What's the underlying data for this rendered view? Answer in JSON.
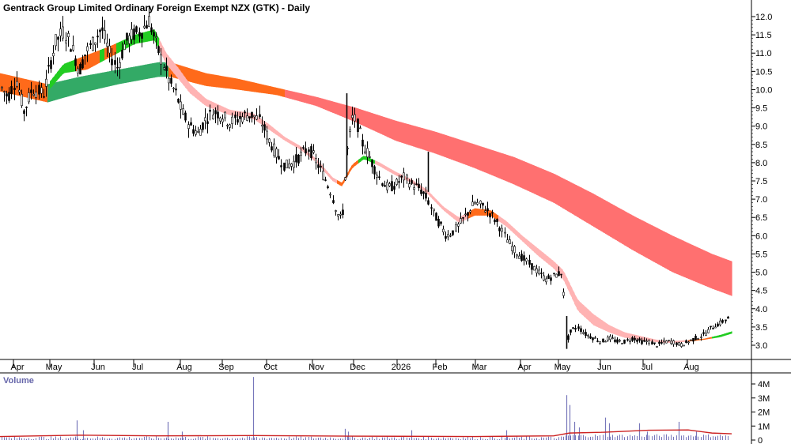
{
  "chart_data": {
    "type": "candlestick",
    "title": "Gentrack Group Limited Ordinary Foreign Exempt NZX (GTK) - Daily",
    "price_axis": {
      "ylim": [
        2.6,
        12.25
      ],
      "ticks": [
        3.0,
        3.5,
        4.0,
        4.5,
        5.0,
        5.5,
        6.0,
        6.5,
        7.0,
        7.5,
        8.0,
        8.5,
        9.0,
        9.5,
        10.0,
        10.5,
        11.0,
        11.5,
        12.0
      ],
      "tick_labels": [
        "3.0",
        "3.5",
        "4.0",
        "4.5",
        "5.0",
        "5.5",
        "6.0",
        "6.5",
        "7.0",
        "7.5",
        "8.0",
        "8.5",
        "9.0",
        "9.5",
        "10.0",
        "10.5",
        "11.0",
        "11.5",
        "12.0"
      ]
    },
    "x_axis": {
      "labels": [
        "Apr",
        "May",
        "Jun",
        "Jul",
        "Aug",
        "Sep",
        "Oct",
        "Nov",
        "Dec",
        "2026",
        "Feb",
        "Mar",
        "Apr",
        "May",
        "Jun",
        "Jul",
        "Aug"
      ],
      "grid": false
    },
    "price_path": [
      [
        0,
        10.1
      ],
      [
        10,
        9.8
      ],
      [
        20,
        10.3
      ],
      [
        30,
        9.4
      ],
      [
        40,
        10.0
      ],
      [
        55,
        9.9
      ],
      [
        62,
        10.6
      ],
      [
        70,
        11.3
      ],
      [
        80,
        11.6
      ],
      [
        90,
        11.2
      ],
      [
        100,
        10.5
      ],
      [
        108,
        11.0
      ],
      [
        118,
        11.3
      ],
      [
        128,
        11.7
      ],
      [
        138,
        11.0
      ],
      [
        148,
        10.6
      ],
      [
        158,
        11.3
      ],
      [
        168,
        11.5
      ],
      [
        178,
        11.6
      ],
      [
        188,
        11.9
      ],
      [
        198,
        11.2
      ],
      [
        206,
        10.7
      ],
      [
        214,
        10.2
      ],
      [
        222,
        9.9
      ],
      [
        230,
        9.4
      ],
      [
        240,
        9.0
      ],
      [
        250,
        8.8
      ],
      [
        260,
        9.2
      ],
      [
        270,
        9.4
      ],
      [
        280,
        9.3
      ],
      [
        290,
        9.1
      ],
      [
        300,
        9.2
      ],
      [
        310,
        9.3
      ],
      [
        320,
        9.3
      ],
      [
        330,
        9.1
      ],
      [
        340,
        8.6
      ],
      [
        350,
        8.2
      ],
      [
        360,
        7.9
      ],
      [
        370,
        8.0
      ],
      [
        380,
        8.2
      ],
      [
        390,
        8.4
      ],
      [
        400,
        8.0
      ],
      [
        410,
        7.6
      ],
      [
        418,
        7.2
      ],
      [
        426,
        6.6
      ],
      [
        432,
        6.4
      ],
      [
        438,
        8.2
      ],
      [
        446,
        9.3
      ],
      [
        452,
        9.0
      ],
      [
        458,
        8.5
      ],
      [
        466,
        8.2
      ],
      [
        474,
        7.8
      ],
      [
        482,
        7.5
      ],
      [
        490,
        7.3
      ],
      [
        500,
        7.4
      ],
      [
        510,
        7.6
      ],
      [
        520,
        7.4
      ],
      [
        530,
        7.3
      ],
      [
        540,
        7.0
      ],
      [
        548,
        6.6
      ],
      [
        556,
        6.3
      ],
      [
        564,
        6.0
      ],
      [
        572,
        6.1
      ],
      [
        580,
        6.3
      ],
      [
        590,
        6.6
      ],
      [
        600,
        6.9
      ],
      [
        610,
        6.8
      ],
      [
        620,
        6.6
      ],
      [
        630,
        6.3
      ],
      [
        640,
        5.9
      ],
      [
        650,
        5.6
      ],
      [
        660,
        5.4
      ],
      [
        670,
        5.2
      ],
      [
        680,
        5.0
      ],
      [
        690,
        4.8
      ],
      [
        700,
        4.9
      ],
      [
        710,
        5.0
      ],
      [
        716,
        3.1
      ],
      [
        722,
        3.4
      ],
      [
        730,
        3.5
      ],
      [
        740,
        3.3
      ],
      [
        750,
        3.2
      ],
      [
        760,
        3.1
      ],
      [
        770,
        3.2
      ],
      [
        780,
        3.1
      ],
      [
        790,
        3.1
      ],
      [
        800,
        3.2
      ],
      [
        810,
        3.1
      ],
      [
        820,
        3.1
      ],
      [
        830,
        3.0
      ],
      [
        840,
        3.1
      ],
      [
        850,
        3.1
      ],
      [
        860,
        3.0
      ],
      [
        870,
        3.1
      ],
      [
        880,
        3.2
      ],
      [
        890,
        3.3
      ],
      [
        900,
        3.5
      ],
      [
        910,
        3.6
      ],
      [
        920,
        3.75
      ]
    ],
    "short_ma_band": [
      [
        0,
        10.35,
        9.8
      ],
      [
        40,
        10.05,
        9.75
      ],
      [
        62,
        10.2,
        10.0
      ],
      [
        80,
        10.7,
        10.45
      ],
      [
        110,
        10.95,
        10.55
      ],
      [
        140,
        11.2,
        10.9
      ],
      [
        170,
        11.5,
        11.25
      ],
      [
        195,
        11.65,
        11.35
      ],
      [
        210,
        11.0,
        10.7
      ],
      [
        225,
        10.6,
        10.3
      ],
      [
        240,
        10.15,
        9.9
      ],
      [
        260,
        9.75,
        9.55
      ],
      [
        290,
        9.45,
        9.3
      ],
      [
        320,
        9.35,
        9.2
      ],
      [
        340,
        9.05,
        8.9
      ],
      [
        360,
        8.7,
        8.6
      ],
      [
        380,
        8.45,
        8.35
      ],
      [
        400,
        8.1,
        8.0
      ],
      [
        420,
        7.6,
        7.5
      ],
      [
        432,
        7.45,
        7.35
      ],
      [
        445,
        7.95,
        7.85
      ],
      [
        460,
        8.2,
        8.1
      ],
      [
        480,
        8.0,
        7.9
      ],
      [
        500,
        7.75,
        7.65
      ],
      [
        520,
        7.55,
        7.45
      ],
      [
        540,
        7.25,
        7.15
      ],
      [
        560,
        6.8,
        6.7
      ],
      [
        580,
        6.5,
        6.35
      ],
      [
        600,
        6.75,
        6.55
      ],
      [
        620,
        6.7,
        6.55
      ],
      [
        640,
        6.4,
        6.25
      ],
      [
        660,
        6.0,
        5.85
      ],
      [
        680,
        5.65,
        5.45
      ],
      [
        700,
        5.3,
        5.1
      ],
      [
        712,
        5.05,
        4.8
      ],
      [
        730,
        4.25,
        3.95
      ],
      [
        750,
        3.85,
        3.55
      ],
      [
        770,
        3.55,
        3.35
      ],
      [
        790,
        3.35,
        3.2
      ],
      [
        810,
        3.25,
        3.15
      ],
      [
        830,
        3.15,
        3.08
      ],
      [
        850,
        3.12,
        3.06
      ],
      [
        870,
        3.14,
        3.1
      ],
      [
        890,
        3.18,
        3.15
      ],
      [
        910,
        3.28,
        3.22
      ],
      [
        925,
        3.38,
        3.32
      ]
    ],
    "long_ma_band": [
      [
        0,
        10.45,
        9.95
      ],
      [
        60,
        10.15,
        9.65
      ],
      [
        100,
        10.35,
        9.9
      ],
      [
        150,
        10.55,
        10.15
      ],
      [
        200,
        10.75,
        10.35
      ],
      [
        215,
        10.75,
        10.35
      ],
      [
        260,
        10.45,
        10.1
      ],
      [
        300,
        10.3,
        10.0
      ],
      [
        350,
        10.05,
        9.85
      ],
      [
        400,
        9.8,
        9.55
      ],
      [
        450,
        9.5,
        9.1
      ],
      [
        500,
        9.15,
        8.6
      ],
      [
        550,
        8.85,
        8.25
      ],
      [
        600,
        8.5,
        7.85
      ],
      [
        650,
        8.15,
        7.4
      ],
      [
        700,
        7.7,
        6.9
      ],
      [
        750,
        7.15,
        6.25
      ],
      [
        800,
        6.55,
        5.6
      ],
      [
        850,
        6.0,
        5.0
      ],
      [
        900,
        5.5,
        4.55
      ],
      [
        925,
        5.3,
        4.35
      ]
    ],
    "volume_axis": {
      "ylim": [
        0,
        4.5
      ],
      "ticks": [
        0,
        1,
        2,
        3,
        4
      ],
      "tick_labels": [
        "0",
        "1M",
        "2M",
        "3M",
        "4M"
      ]
    },
    "volume_spikes": [
      [
        97,
        1.4
      ],
      [
        105,
        0.7
      ],
      [
        212,
        1.3
      ],
      [
        230,
        0.6
      ],
      [
        320,
        4.5
      ],
      [
        436,
        0.8
      ],
      [
        440,
        0.6
      ],
      [
        520,
        0.7
      ],
      [
        640,
        0.7
      ],
      [
        716,
        3.2
      ],
      [
        720,
        2.5
      ],
      [
        726,
        1.3
      ],
      [
        732,
        0.9
      ],
      [
        765,
        1.6
      ],
      [
        770,
        1.2
      ],
      [
        808,
        1.2
      ],
      [
        818,
        0.6
      ],
      [
        858,
        1.3
      ],
      [
        880,
        0.6
      ]
    ],
    "volume_ma": [
      [
        0,
        0.25
      ],
      [
        100,
        0.35
      ],
      [
        200,
        0.3
      ],
      [
        320,
        0.32
      ],
      [
        440,
        0.28
      ],
      [
        600,
        0.25
      ],
      [
        700,
        0.3
      ],
      [
        720,
        0.5
      ],
      [
        760,
        0.55
      ],
      [
        820,
        0.7
      ],
      [
        870,
        0.72
      ],
      [
        900,
        0.5
      ],
      [
        925,
        0.45
      ]
    ],
    "volume_label": "Volume",
    "colors": {
      "short_band_up": "#22cc22",
      "short_band_down": "#ffb3b3",
      "short_band_neutral": "#ff6a1a",
      "long_band_up": "#33aa66",
      "long_band_down": "#ff7070",
      "long_band_neutral": "#ff6a1a",
      "candle": "#000000",
      "volume_bar": "#7777bb",
      "volume_ma": "#cc2222",
      "volume_label": "#6666aa"
    }
  }
}
